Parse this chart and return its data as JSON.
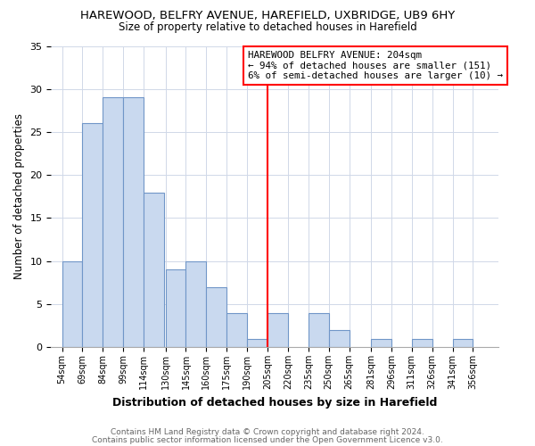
{
  "title": "HAREWOOD, BELFRY AVENUE, HAREFIELD, UXBRIDGE, UB9 6HY",
  "subtitle": "Size of property relative to detached houses in Harefield",
  "xlabel": "Distribution of detached houses by size in Harefield",
  "ylabel": "Number of detached properties",
  "bar_labels": [
    "54sqm",
    "69sqm",
    "84sqm",
    "99sqm",
    "114sqm",
    "130sqm",
    "145sqm",
    "160sqm",
    "175sqm",
    "190sqm",
    "205sqm",
    "220sqm",
    "235sqm",
    "250sqm",
    "265sqm",
    "281sqm",
    "296sqm",
    "311sqm",
    "326sqm",
    "341sqm",
    "356sqm"
  ],
  "bar_values": [
    10,
    26,
    29,
    29,
    18,
    9,
    10,
    7,
    4,
    1,
    4,
    0,
    4,
    2,
    0,
    1,
    0,
    1,
    0,
    1,
    0
  ],
  "bar_left_edges": [
    54,
    69,
    84,
    99,
    114,
    130,
    145,
    160,
    175,
    190,
    205,
    220,
    235,
    250,
    265,
    281,
    296,
    311,
    326,
    341,
    356
  ],
  "bin_width": 15,
  "bar_color": "#c9d9ef",
  "bar_edge_color": "#7096c8",
  "reference_line_x": 205,
  "reference_line_color": "red",
  "ylim": [
    0,
    35
  ],
  "yticks": [
    0,
    5,
    10,
    15,
    20,
    25,
    30,
    35
  ],
  "xlim_left": 46,
  "xlim_right": 375,
  "annotation_title": "HAREWOOD BELFRY AVENUE: 204sqm",
  "annotation_line1": "← 94% of detached houses are smaller (151)",
  "annotation_line2": "6% of semi-detached houses are larger (10) →",
  "annotation_box_color": "#ffffff",
  "annotation_box_edge": "red",
  "footer1": "Contains HM Land Registry data © Crown copyright and database right 2024.",
  "footer2": "Contains public sector information licensed under the Open Government Licence v3.0.",
  "bg_color": "#ffffff",
  "grid_color": "#d0d8e8"
}
